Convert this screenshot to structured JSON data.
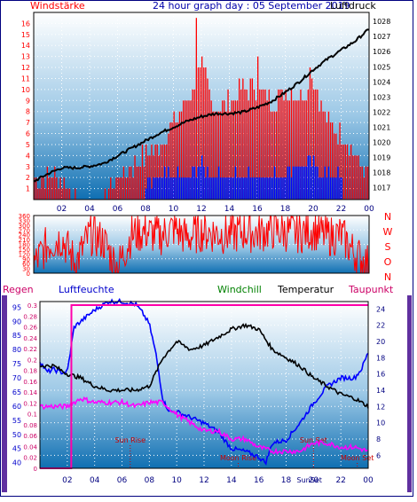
{
  "chart_data": [
    {
      "type": "line",
      "panel": "top",
      "title": "24 hour graph day : 05 September 2019",
      "left_label": "Windstärke",
      "right_label": "Luftdruck",
      "x_ticks": [
        "02",
        "04",
        "06",
        "08",
        "10",
        "12",
        "14",
        "16",
        "18",
        "20",
        "22",
        "00"
      ],
      "y_left_ticks": [
        "1",
        "2",
        "3",
        "4",
        "5",
        "6",
        "7",
        "8",
        "9",
        "10",
        "11",
        "12",
        "13",
        "14",
        "15",
        "16"
      ],
      "y_right_ticks": [
        "1017",
        "1018",
        "1019",
        "1020",
        "1021",
        "1022",
        "1023",
        "1024",
        "1025",
        "1026",
        "1027",
        "1028"
      ],
      "ylim_left": [
        0,
        17
      ],
      "ylim_right": [
        1016.2,
        1028.6
      ],
      "xlim": [
        0,
        24
      ],
      "series": [
        {
          "kind": "pressure",
          "color": "#000000",
          "x": [
            0,
            1,
            2,
            3,
            4,
            5,
            6,
            7,
            8,
            9,
            10,
            11,
            12,
            13,
            14,
            15,
            16,
            17,
            18,
            19,
            20,
            21,
            22,
            23,
            24
          ],
          "values": [
            1017.4,
            1017.9,
            1018.3,
            1018.3,
            1018.4,
            1018.6,
            1019.1,
            1019.6,
            1020.1,
            1020.6,
            1021.0,
            1021.4,
            1021.7,
            1021.9,
            1021.9,
            1022.0,
            1022.3,
            1022.7,
            1023.3,
            1024.0,
            1024.8,
            1025.5,
            1026.1,
            1026.7,
            1027.5
          ]
        },
        {
          "kind": "wind_gust_bars",
          "color": "#ff0000",
          "x": [
            0,
            1,
            2,
            3,
            4,
            5,
            6,
            7,
            8,
            9,
            10,
            11,
            12,
            13,
            14,
            15,
            16,
            17,
            18,
            19,
            20,
            21,
            22,
            23,
            24
          ],
          "values": [
            2,
            2,
            2,
            0,
            0,
            0,
            2,
            3,
            4,
            5,
            7,
            9,
            12,
            8,
            9,
            10,
            10,
            9,
            10,
            9,
            11,
            7,
            6,
            4,
            2
          ]
        },
        {
          "kind": "wind_mean_bars",
          "color": "#0000ff",
          "x": [
            8,
            9,
            10,
            11,
            12,
            13,
            14,
            15,
            16,
            17,
            18,
            19,
            20,
            21,
            22
          ],
          "values": [
            1,
            2,
            2,
            2,
            3,
            2,
            2,
            2,
            2,
            2,
            2,
            3,
            3,
            2,
            2
          ]
        }
      ]
    },
    {
      "type": "line",
      "panel": "middle",
      "y_ticks": [
        "0",
        "30",
        "60",
        "90",
        "120",
        "150",
        "180",
        "210",
        "240",
        "270",
        "300",
        "330",
        "360"
      ],
      "ylim": [
        0,
        360
      ],
      "compass": [
        "N",
        "W",
        "S",
        "O",
        "N"
      ],
      "series": [
        {
          "kind": "wind_direction",
          "color": "#ff0000",
          "x": [
            0,
            1,
            2,
            3,
            4,
            5,
            6,
            7,
            8,
            9,
            10,
            11,
            12,
            13,
            14,
            15,
            16,
            17,
            18,
            19,
            20,
            21,
            22,
            23,
            24
          ],
          "values": [
            50,
            180,
            220,
            60,
            240,
            200,
            30,
            240,
            260,
            230,
            280,
            220,
            260,
            250,
            240,
            260,
            250,
            270,
            260,
            250,
            270,
            230,
            240,
            120,
            50
          ]
        }
      ]
    },
    {
      "type": "line",
      "panel": "bottom",
      "legend": {
        "regen": "Regen",
        "luftfeuchte": "Luftfeuchte",
        "windchill": "Windchill",
        "temperatur": "Temperatur",
        "taupunkt": "Taupunkt"
      },
      "y_humidity_ticks": [
        "40",
        "45",
        "50",
        "55",
        "60",
        "65",
        "70",
        "75",
        "80",
        "85",
        "90",
        "95"
      ],
      "y_rain_ticks": [
        "0",
        "0.02",
        "0.04",
        "0.06",
        "0.08",
        "0.1",
        "0.12",
        "0.14",
        "0.16",
        "0.18",
        "0.2",
        "0.22",
        "0.24",
        "0.26",
        "0.28",
        "0.3"
      ],
      "y_temp_ticks": [
        "6",
        "8",
        "10",
        "12",
        "14",
        "16",
        "18",
        "20",
        "22",
        "24"
      ],
      "x_ticks": [
        "02",
        "04",
        "06",
        "08",
        "10",
        "12",
        "14",
        "16",
        "18",
        "20",
        "22",
        "00"
      ],
      "annotations": [
        "Sun Rise",
        "Moon Rise",
        "Sun Set",
        "Moon Set",
        "SunSet"
      ],
      "series": [
        {
          "name": "Luftfeuchte",
          "color": "#0000ff",
          "axis": "humidity",
          "x": [
            0,
            0.5,
            1,
            1.5,
            2,
            2.5,
            3,
            4,
            5,
            6,
            7,
            7.5,
            8,
            8.5,
            9,
            9.5,
            10,
            11,
            12,
            13,
            14,
            15,
            16,
            16.5,
            17,
            18,
            19,
            20,
            21,
            22,
            23,
            23.5,
            24
          ],
          "values": [
            76,
            72,
            73,
            72,
            72,
            88,
            90,
            94,
            97,
            97,
            96,
            93,
            89,
            78,
            62,
            58,
            58,
            56,
            54,
            51,
            45,
            44,
            42,
            40,
            47,
            48,
            54,
            61,
            67,
            70,
            70,
            73,
            79
          ]
        },
        {
          "name": "Temperatur",
          "color": "#000000",
          "axis": "temp",
          "x": [
            0,
            1,
            2,
            3,
            4,
            5,
            6,
            7,
            8,
            9,
            10,
            11,
            12,
            13,
            14,
            15,
            16,
            17,
            18,
            19,
            20,
            21,
            22,
            23,
            24
          ],
          "values": [
            17,
            17,
            16,
            15.5,
            14.5,
            14,
            14,
            14,
            14.5,
            18,
            20,
            19,
            19.5,
            20.5,
            21.5,
            22,
            21.5,
            19,
            18,
            17,
            15.5,
            14.5,
            13.5,
            13,
            12
          ]
        },
        {
          "name": "Taupunkt",
          "color": "#ff00ff",
          "axis": "temp",
          "x": [
            0,
            1,
            2,
            3,
            4,
            5,
            6,
            7,
            8,
            9,
            10,
            11,
            12,
            13,
            14,
            15,
            16,
            17,
            18,
            19,
            20,
            21,
            22,
            23,
            24
          ],
          "values": [
            12,
            12,
            12,
            13,
            12.5,
            12.5,
            12.5,
            12,
            12.5,
            12.5,
            11,
            10,
            9,
            9,
            8,
            8,
            7,
            6.5,
            6.5,
            6.5,
            7.5,
            7.5,
            7,
            7,
            6.5
          ]
        },
        {
          "name": "Regen",
          "color": "#ff00aa",
          "axis": "rain",
          "x": [
            0,
            2.29,
            2.3,
            24
          ],
          "values": [
            0,
            0,
            0.3,
            0.3
          ]
        }
      ]
    }
  ]
}
